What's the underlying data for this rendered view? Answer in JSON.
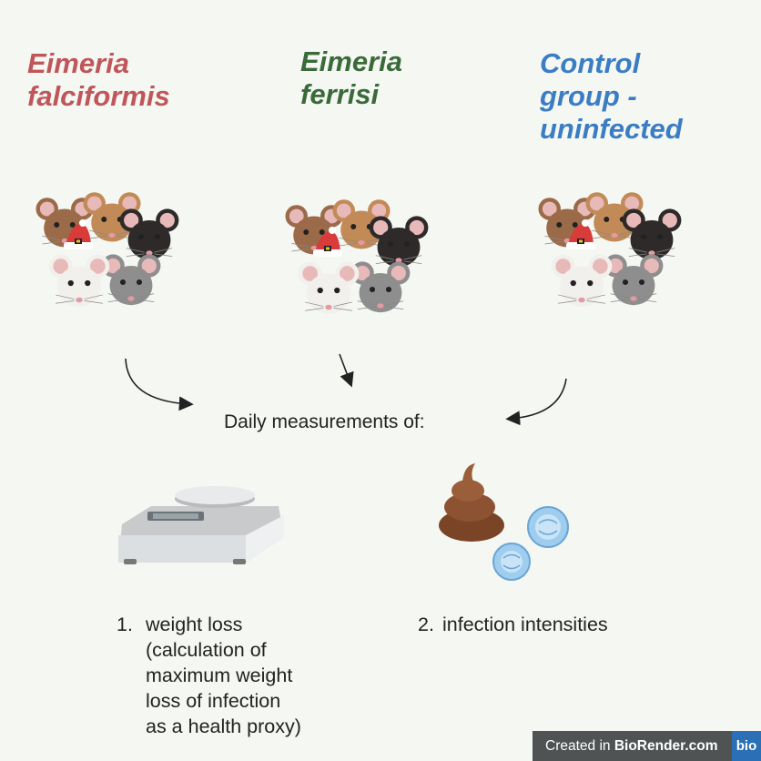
{
  "groups": [
    {
      "id": "falc",
      "title": "Eimeria\nfalciformis",
      "color": "#c0565a"
    },
    {
      "id": "ferr",
      "title": "Eimeria\nferrisi",
      "color": "#3a6a3a"
    },
    {
      "id": "ctrl",
      "title": "Control\ngroup -\nuninfected",
      "color": "#3b7dc4"
    }
  ],
  "daily_label": "Daily measurements of:",
  "measurements": [
    {
      "number": "1.",
      "text": "weight loss\n(calculation of\nmaximum weight\nloss of infection\nas a health proxy)"
    },
    {
      "number": "2.",
      "text": "infection intensities"
    }
  ],
  "badge": {
    "prefix": "Created in",
    "brand": "BioRender.com",
    "logo": "bio"
  },
  "icons": [
    "mouse-group-icon",
    "arrow-icon",
    "scale-icon",
    "poop-icon",
    "oocyst-icon"
  ]
}
